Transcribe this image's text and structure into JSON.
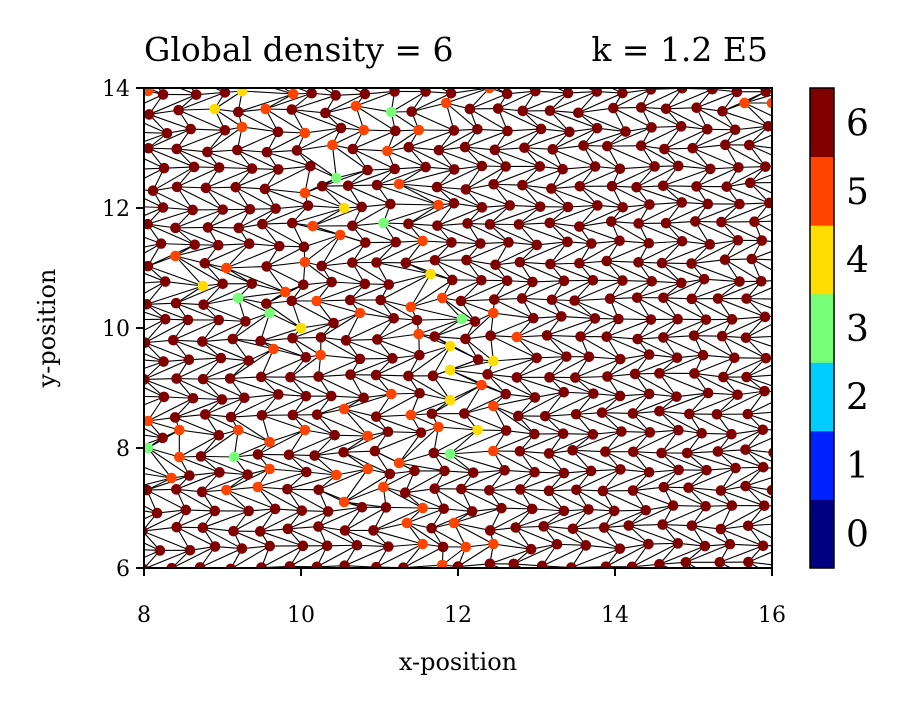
{
  "chart_data": {
    "type": "scatter",
    "title_left": "Global density = 6",
    "title_right": "k = 1.2 E5",
    "xlabel": "x-position",
    "ylabel": "y-position",
    "xlim": [
      8,
      16
    ],
    "ylim": [
      6,
      14
    ],
    "x_ticks": [
      "8",
      "10",
      "12",
      "14",
      "16"
    ],
    "y_ticks": [
      "6",
      "8",
      "10",
      "12",
      "14"
    ],
    "lattice": {
      "spacing": 0.365,
      "background_coordination": 6,
      "edge_color": "#000000"
    },
    "defects": [
      {
        "x": 8.9,
        "y": 13.65,
        "n": 4
      },
      {
        "x": 9.25,
        "y": 13.95,
        "n": 4
      },
      {
        "x": 9.55,
        "y": 13.65,
        "n": 5
      },
      {
        "x": 8.05,
        "y": 13.95,
        "n": 5
      },
      {
        "x": 9.9,
        "y": 13.9,
        "n": 5
      },
      {
        "x": 9.25,
        "y": 13.35,
        "n": 5
      },
      {
        "x": 10.05,
        "y": 13.25,
        "n": 5
      },
      {
        "x": 10.7,
        "y": 13.7,
        "n": 5
      },
      {
        "x": 11.15,
        "y": 13.6,
        "n": 3
      },
      {
        "x": 10.4,
        "y": 13.05,
        "n": 5
      },
      {
        "x": 10.8,
        "y": 13.3,
        "n": 5
      },
      {
        "x": 11.5,
        "y": 13.3,
        "n": 5
      },
      {
        "x": 11.85,
        "y": 13.75,
        "n": 5
      },
      {
        "x": 11.1,
        "y": 12.95,
        "n": 5
      },
      {
        "x": 10.45,
        "y": 12.5,
        "n": 3
      },
      {
        "x": 11.25,
        "y": 12.4,
        "n": 5
      },
      {
        "x": 10.05,
        "y": 12.25,
        "n": 5
      },
      {
        "x": 10.55,
        "y": 12.0,
        "n": 4
      },
      {
        "x": 11.05,
        "y": 11.75,
        "n": 3
      },
      {
        "x": 11.75,
        "y": 12.05,
        "n": 5
      },
      {
        "x": 10.15,
        "y": 11.7,
        "n": 5
      },
      {
        "x": 10.5,
        "y": 11.55,
        "n": 5
      },
      {
        "x": 11.55,
        "y": 11.45,
        "n": 5
      },
      {
        "x": 10.05,
        "y": 11.1,
        "n": 5
      },
      {
        "x": 11.65,
        "y": 10.9,
        "n": 4
      },
      {
        "x": 8.4,
        "y": 11.2,
        "n": 5
      },
      {
        "x": 8.75,
        "y": 10.7,
        "n": 4
      },
      {
        "x": 9.2,
        "y": 10.5,
        "n": 3
      },
      {
        "x": 9.05,
        "y": 11.0,
        "n": 5
      },
      {
        "x": 9.6,
        "y": 10.25,
        "n": 3
      },
      {
        "x": 10.0,
        "y": 10.0,
        "n": 4
      },
      {
        "x": 10.2,
        "y": 10.45,
        "n": 5
      },
      {
        "x": 9.8,
        "y": 10.6,
        "n": 5
      },
      {
        "x": 10.75,
        "y": 10.25,
        "n": 5
      },
      {
        "x": 11.4,
        "y": 10.35,
        "n": 5
      },
      {
        "x": 11.8,
        "y": 10.5,
        "n": 5
      },
      {
        "x": 12.05,
        "y": 10.15,
        "n": 3
      },
      {
        "x": 12.45,
        "y": 10.25,
        "n": 5
      },
      {
        "x": 12.75,
        "y": 9.85,
        "n": 5
      },
      {
        "x": 11.5,
        "y": 9.9,
        "n": 5
      },
      {
        "x": 11.9,
        "y": 9.7,
        "n": 4
      },
      {
        "x": 12.45,
        "y": 9.45,
        "n": 4
      },
      {
        "x": 11.9,
        "y": 9.3,
        "n": 4
      },
      {
        "x": 12.3,
        "y": 9.05,
        "n": 5
      },
      {
        "x": 11.9,
        "y": 8.8,
        "n": 4
      },
      {
        "x": 12.45,
        "y": 8.7,
        "n": 5
      },
      {
        "x": 12.25,
        "y": 8.3,
        "n": 4
      },
      {
        "x": 12.45,
        "y": 7.95,
        "n": 5
      },
      {
        "x": 11.9,
        "y": 7.9,
        "n": 3
      },
      {
        "x": 11.75,
        "y": 8.35,
        "n": 5
      },
      {
        "x": 11.4,
        "y": 8.55,
        "n": 5
      },
      {
        "x": 11.15,
        "y": 8.9,
        "n": 5
      },
      {
        "x": 10.55,
        "y": 8.65,
        "n": 5
      },
      {
        "x": 10.85,
        "y": 8.2,
        "n": 5
      },
      {
        "x": 11.25,
        "y": 7.75,
        "n": 5
      },
      {
        "x": 10.85,
        "y": 7.65,
        "n": 5
      },
      {
        "x": 10.45,
        "y": 7.55,
        "n": 5
      },
      {
        "x": 11.05,
        "y": 7.35,
        "n": 5
      },
      {
        "x": 10.55,
        "y": 7.1,
        "n": 5
      },
      {
        "x": 11.55,
        "y": 7.0,
        "n": 5
      },
      {
        "x": 11.35,
        "y": 6.75,
        "n": 5
      },
      {
        "x": 11.55,
        "y": 6.4,
        "n": 5
      },
      {
        "x": 11.8,
        "y": 6.05,
        "n": 5
      },
      {
        "x": 12.1,
        "y": 6.35,
        "n": 5
      },
      {
        "x": 12.45,
        "y": 6.4,
        "n": 5
      },
      {
        "x": 11.95,
        "y": 6.75,
        "n": 5
      },
      {
        "x": 10.25,
        "y": 9.55,
        "n": 5
      },
      {
        "x": 9.65,
        "y": 9.65,
        "n": 5
      },
      {
        "x": 9.2,
        "y": 8.3,
        "n": 5
      },
      {
        "x": 9.6,
        "y": 8.1,
        "n": 5
      },
      {
        "x": 10.05,
        "y": 8.3,
        "n": 5
      },
      {
        "x": 9.15,
        "y": 7.85,
        "n": 3
      },
      {
        "x": 9.6,
        "y": 7.65,
        "n": 5
      },
      {
        "x": 9.45,
        "y": 7.35,
        "n": 5
      },
      {
        "x": 9.05,
        "y": 7.3,
        "n": 5
      },
      {
        "x": 8.05,
        "y": 8.45,
        "n": 5
      },
      {
        "x": 8.45,
        "y": 8.3,
        "n": 5
      },
      {
        "x": 8.05,
        "y": 8.0,
        "n": 3
      },
      {
        "x": 8.45,
        "y": 7.85,
        "n": 5
      },
      {
        "x": 8.35,
        "y": 7.5,
        "n": 5
      },
      {
        "x": 15.65,
        "y": 13.75,
        "n": 5
      },
      {
        "x": 16.0,
        "y": 13.75,
        "n": 5
      },
      {
        "x": 12.4,
        "y": 14.0,
        "n": 5
      }
    ],
    "colorbar": {
      "labels": [
        "0",
        "1",
        "2",
        "3",
        "4",
        "5",
        "6"
      ],
      "colors": [
        "#000080",
        "#0022ff",
        "#00ccff",
        "#77ff77",
        "#ffdd00",
        "#ff4400",
        "#800000"
      ]
    },
    "grid": false,
    "legend": "colorbar-right"
  }
}
